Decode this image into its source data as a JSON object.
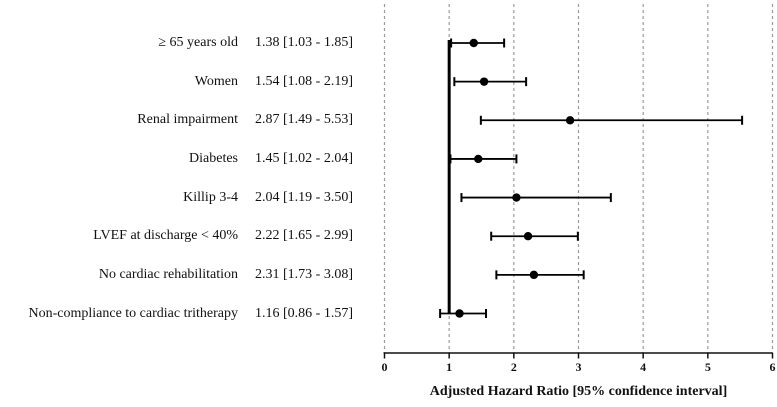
{
  "chart_data": {
    "type": "forest",
    "title": "",
    "xlabel": "Adjusted Hazard Ratio [95% confidence interval]",
    "ylabel": "",
    "xlim": [
      0,
      6
    ],
    "x_ticks": [
      0,
      1,
      2,
      3,
      4,
      5,
      6
    ],
    "reference_line_x": 1,
    "grid": "vertical-dashed",
    "legend": "none",
    "colors": {
      "marker": "#000000",
      "ci_line": "#000000",
      "reference_line": "#000000",
      "gridline": "#9a9a9a",
      "axis": "#111111",
      "text": "#111111",
      "background": "#ffffff"
    },
    "rows": [
      {
        "label": "≥ 65 years old",
        "value_text": "1.38 [1.03 - 1.85]",
        "hr": 1.38,
        "ci_low": 1.03,
        "ci_high": 1.85
      },
      {
        "label": "Women",
        "value_text": "1.54 [1.08 - 2.19]",
        "hr": 1.54,
        "ci_low": 1.08,
        "ci_high": 2.19
      },
      {
        "label": "Renal impairment",
        "value_text": "2.87 [1.49 - 5.53]",
        "hr": 2.87,
        "ci_low": 1.49,
        "ci_high": 5.53
      },
      {
        "label": "Diabetes",
        "value_text": "1.45 [1.02 - 2.04]",
        "hr": 1.45,
        "ci_low": 1.02,
        "ci_high": 2.04
      },
      {
        "label": "Killip 3-4",
        "value_text": "2.04 [1.19 - 3.50]",
        "hr": 2.04,
        "ci_low": 1.19,
        "ci_high": 3.5
      },
      {
        "label": "LVEF at discharge < 40%",
        "value_text": "2.22 [1.65 - 2.99]",
        "hr": 2.22,
        "ci_low": 1.65,
        "ci_high": 2.99
      },
      {
        "label": "No cardiac rehabilitation",
        "value_text": "2.31 [1.73 - 3.08]",
        "hr": 2.31,
        "ci_low": 1.73,
        "ci_high": 3.08
      },
      {
        "label": "Non-compliance to cardiac tritherapy",
        "value_text": "1.16 [0.86 - 1.57]",
        "hr": 1.16,
        "ci_low": 0.86,
        "ci_high": 1.57
      }
    ]
  }
}
